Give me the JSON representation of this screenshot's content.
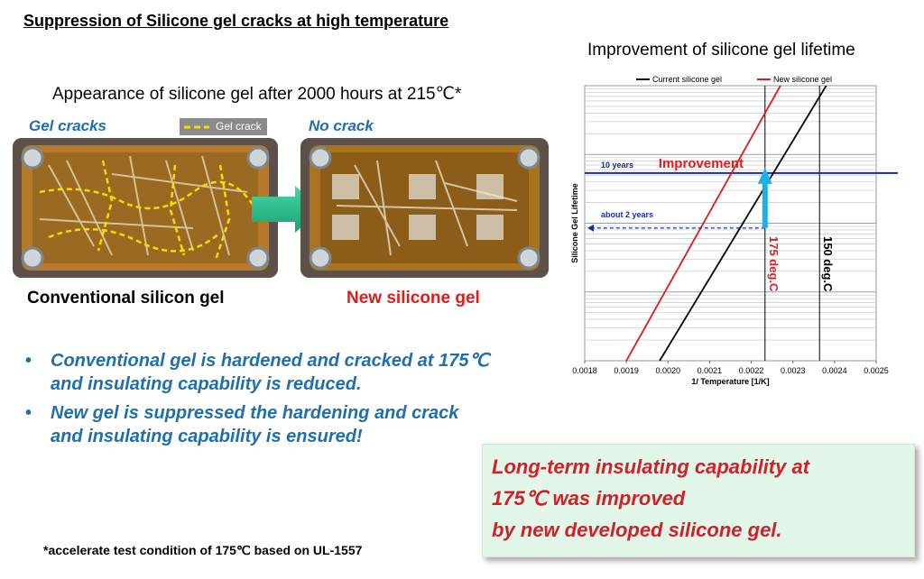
{
  "slide": {
    "title": "Suppression of Silicone gel cracks at high temperature",
    "appearance_title": "Appearance of silicone gel after 2000 hours at 215℃*",
    "left_photo": {
      "label": "Gel cracks",
      "legend": "Gel crack",
      "caption": "Conventional silicon gel",
      "caption_color": "#000000"
    },
    "right_photo": {
      "label": "No crack",
      "caption": "New silicone gel",
      "caption_color": "#e01b1b"
    },
    "bullets": [
      {
        "line1": "Conventional gel is hardened and cracked at 175℃",
        "line2": "and insulating capability is reduced."
      },
      {
        "line1": "New gel is suppressed the hardening and crack",
        "line2": "and insulating capability is ensured!"
      }
    ],
    "bullet_symbol": "•",
    "footnote": "*accelerate test condition of 175℃ based on UL-1557",
    "conclusion": {
      "line1": "Long-term insulating capability at",
      "line2": "175℃ was improved",
      "line3": "by new developed silicone gel."
    },
    "colors": {
      "accent_blue": "#1f6fb0",
      "accent_red": "#d0202a",
      "conclusion_bg": "#e3f6ea"
    }
  },
  "chart": {
    "title": "Improvement of silicone gel lifetime"
  },
  "chart_data": {
    "type": "line",
    "title": "Improvement of silicone gel lifetime",
    "xlabel": "1/ Temperature [1/K]",
    "ylabel": "Silicone Gel Lifetime",
    "xlim": [
      0.0018,
      0.0025
    ],
    "x_ticks": [
      "0.0018",
      "0.0019",
      "0.0020",
      "0.0021",
      "0.0022",
      "0.0023",
      "0.0024",
      "0.0025"
    ],
    "y_scale": "log",
    "grid": true,
    "legend_position": "top",
    "series": [
      {
        "name": "Current silicone gel",
        "color": "#000000",
        "x": [
          0.00198,
          0.00238
        ],
        "y_log_decades": [
          0.0,
          4.0
        ]
      },
      {
        "name": "New silicone gel",
        "color": "#e01b1b",
        "x": [
          0.0019,
          0.00227
        ],
        "y_log_decades": [
          0.0,
          4.0
        ]
      }
    ],
    "vertical_markers": [
      {
        "label": "175 deg.C",
        "x": 0.002233,
        "color": "#e01b1b"
      },
      {
        "label": "150 deg.C",
        "x": 0.002364,
        "color": "#000000"
      }
    ],
    "horizontal_markers": [
      {
        "label": "10 years",
        "y_log_decades": 2.73,
        "color": "#1a2f9b"
      },
      {
        "label": "about 2 years",
        "y_log_decades": 1.93,
        "color": "#1a2f9b"
      }
    ],
    "annotations": [
      {
        "text": "Improvement",
        "color": "#e01b1b"
      }
    ]
  }
}
